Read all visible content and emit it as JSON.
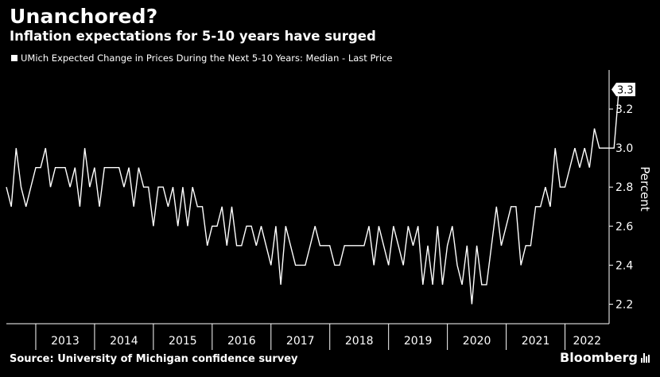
{
  "header": {
    "title": "Unanchored?",
    "subtitle": "Inflation expectations for 5-10 years have surged"
  },
  "footer": {
    "source": "Source: University of Michigan confidence survey",
    "brand": "Bloomberg"
  },
  "colors": {
    "background": "#000000",
    "line": "#ffffff",
    "axis": "#ffffff"
  },
  "icons": {
    "brand": "bloomberg-bars-icon"
  },
  "chart_data": {
    "type": "line",
    "legend": "UMich Expected Change in Prices During the Next 5-10 Years: Median - Last Price",
    "legend_placement": "top-left",
    "title": "Unanchored?",
    "subtitle": "Inflation expectations for 5-10 years have surged",
    "ylabel": "Percent",
    "xlabel": "",
    "x_start": "2012-07",
    "x_frequency": "monthly",
    "xlim": [
      "2012-07",
      "2022-10"
    ],
    "ylim": [
      2.1,
      3.4
    ],
    "y_ticks": [
      2.2,
      2.4,
      2.6,
      2.8,
      3.0,
      3.2
    ],
    "y_tick_labels": [
      "2.2",
      "2.4",
      "2.6",
      "2.8",
      "3.0",
      "3.2"
    ],
    "x_tick_labels": [
      "2013",
      "2014",
      "2015",
      "2016",
      "2017",
      "2018",
      "2019",
      "2020",
      "2021",
      "2022"
    ],
    "grid": false,
    "last_value_label": "3.3",
    "series": [
      {
        "name": "UMich Expected Change in Prices During the Next 5-10 Years: Median - Last Price",
        "values": [
          2.8,
          2.7,
          3.0,
          2.8,
          2.7,
          2.8,
          2.9,
          2.9,
          3.0,
          2.8,
          2.9,
          2.9,
          2.9,
          2.8,
          2.9,
          2.7,
          3.0,
          2.8,
          2.9,
          2.7,
          2.9,
          2.9,
          2.9,
          2.9,
          2.8,
          2.9,
          2.7,
          2.9,
          2.8,
          2.8,
          2.6,
          2.8,
          2.8,
          2.7,
          2.8,
          2.6,
          2.8,
          2.6,
          2.8,
          2.7,
          2.7,
          2.5,
          2.6,
          2.6,
          2.7,
          2.5,
          2.7,
          2.5,
          2.5,
          2.6,
          2.6,
          2.5,
          2.6,
          2.5,
          2.4,
          2.6,
          2.3,
          2.6,
          2.5,
          2.4,
          2.4,
          2.4,
          2.5,
          2.6,
          2.5,
          2.5,
          2.5,
          2.4,
          2.4,
          2.5,
          2.5,
          2.5,
          2.5,
          2.5,
          2.6,
          2.4,
          2.6,
          2.5,
          2.4,
          2.6,
          2.5,
          2.4,
          2.6,
          2.5,
          2.6,
          2.3,
          2.5,
          2.3,
          2.6,
          2.3,
          2.5,
          2.6,
          2.4,
          2.3,
          2.5,
          2.2,
          2.5,
          2.3,
          2.3,
          2.5,
          2.7,
          2.5,
          2.6,
          2.7,
          2.7,
          2.4,
          2.5,
          2.5,
          2.7,
          2.7,
          2.8,
          2.7,
          3.0,
          2.8,
          2.8,
          2.9,
          3.0,
          2.9,
          3.0,
          2.9,
          3.1,
          3.0,
          3.0,
          3.0,
          3.0,
          3.3
        ]
      }
    ]
  }
}
